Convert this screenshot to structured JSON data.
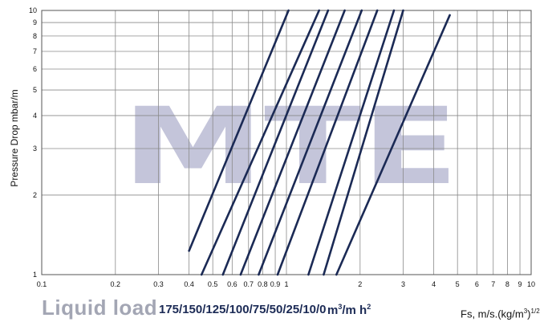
{
  "top_title_fragment": "",
  "watermark": {
    "text": "MTE",
    "color": "#3b3f86"
  },
  "line_color": "#1b2a55",
  "liquid_load": {
    "label": "Liquid load",
    "values": "175/150/125/100/75/50/25/10/0",
    "unit_prefix": "m",
    "unit_sup": "3",
    "unit_mid": "/m h",
    "unit_sup2": "2"
  },
  "x_axis_label": {
    "main": "Fs, m/s.(kg/m",
    "sup": "3",
    "close": ")",
    "sup2": "1/2"
  },
  "chart_data": {
    "type": "line",
    "title": "",
    "xlabel": "Fs, m/s.(kg/m3)1/2",
    "ylabel": "Pressure Drop mbar/m",
    "xscale": "log",
    "yscale": "log",
    "xlim": [
      0.1,
      10
    ],
    "ylim": [
      1,
      10
    ],
    "grid": true,
    "x_ticks": [
      0.1,
      0.2,
      0.3,
      0.4,
      0.5,
      0.6,
      0.7,
      0.8,
      0.9,
      1,
      2,
      3,
      4,
      5,
      6,
      7,
      8,
      9,
      10
    ],
    "x_tick_labels": [
      "0.1",
      "0.2",
      "0.3",
      "0.4",
      "0.5",
      "0.6",
      "0.7",
      "0.8",
      "0.9",
      "1",
      "2",
      "3",
      "4",
      "5",
      "6",
      "7",
      "8",
      "9",
      "10"
    ],
    "y_ticks": [
      1,
      2,
      3,
      4,
      5,
      6,
      7,
      8,
      9,
      10
    ],
    "y_tick_labels": [
      "1",
      "2",
      "3",
      "4",
      "5",
      "6",
      "7",
      "8",
      "9",
      "10"
    ],
    "series": [
      {
        "liquid_load": "175",
        "points": [
          [
            0.4,
            1.23
          ],
          [
            1.02,
            10
          ]
        ]
      },
      {
        "liquid_load": "150",
        "points": [
          [
            0.45,
            1.0
          ],
          [
            1.36,
            10
          ]
        ]
      },
      {
        "liquid_load": "125",
        "points": [
          [
            0.55,
            1.0
          ],
          [
            1.48,
            10
          ]
        ]
      },
      {
        "liquid_load": "100",
        "points": [
          [
            0.65,
            1.0
          ],
          [
            1.73,
            10
          ]
        ]
      },
      {
        "liquid_load": "75",
        "points": [
          [
            0.77,
            1.0
          ],
          [
            2.03,
            10
          ]
        ]
      },
      {
        "liquid_load": "50",
        "points": [
          [
            0.92,
            1.0
          ],
          [
            2.35,
            10
          ]
        ]
      },
      {
        "liquid_load": "25",
        "points": [
          [
            1.23,
            1.0
          ],
          [
            2.75,
            10
          ]
        ]
      },
      {
        "liquid_load": "10",
        "points": [
          [
            1.42,
            1.0
          ],
          [
            3.0,
            10
          ]
        ]
      },
      {
        "liquid_load": "0",
        "points": [
          [
            1.6,
            1.0
          ],
          [
            4.65,
            9.6
          ]
        ]
      }
    ]
  }
}
